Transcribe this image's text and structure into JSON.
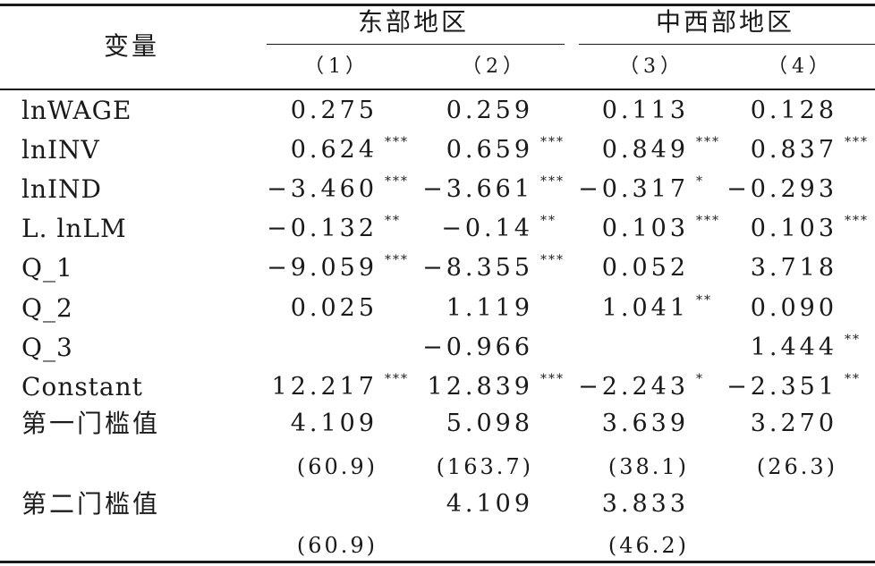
{
  "header": {
    "variable": "变量",
    "groups": [
      "东部地区",
      "中西部地区"
    ],
    "columns": [
      "（1）",
      "（2）",
      "（3）",
      "（4）"
    ]
  },
  "rows": [
    {
      "label": "lnWAGE",
      "cells": [
        {
          "v": "0.275",
          "s": ""
        },
        {
          "v": "0.259",
          "s": ""
        },
        {
          "v": "0.113",
          "s": ""
        },
        {
          "v": "0.128",
          "s": ""
        }
      ]
    },
    {
      "label": "lnINV",
      "cells": [
        {
          "v": "0.624",
          "s": "***"
        },
        {
          "v": "0.659",
          "s": "***"
        },
        {
          "v": "0.849",
          "s": "***"
        },
        {
          "v": "0.837",
          "s": "***"
        }
      ]
    },
    {
      "label": "lnIND",
      "cells": [
        {
          "v": "−3.460",
          "s": "***"
        },
        {
          "v": "−3.661",
          "s": "***"
        },
        {
          "v": "−0.317",
          "s": "*"
        },
        {
          "v": "−0.293",
          "s": ""
        }
      ]
    },
    {
      "label": "L. lnLM",
      "cells": [
        {
          "v": "−0.132",
          "s": "**"
        },
        {
          "v": "−0.14",
          "s": "**"
        },
        {
          "v": "0.103",
          "s": "***"
        },
        {
          "v": "0.103",
          "s": "***"
        }
      ]
    },
    {
      "label": "Q_1",
      "cells": [
        {
          "v": "−9.059",
          "s": "***"
        },
        {
          "v": "−8.355",
          "s": "***"
        },
        {
          "v": "0.052",
          "s": ""
        },
        {
          "v": "3.718",
          "s": ""
        }
      ]
    },
    {
      "label": "Q_2",
      "cells": [
        {
          "v": "0.025",
          "s": ""
        },
        {
          "v": "1.119",
          "s": ""
        },
        {
          "v": "1.041",
          "s": "**"
        },
        {
          "v": "0.090",
          "s": ""
        }
      ]
    },
    {
      "label": "Q_3",
      "cells": [
        {
          "v": "",
          "s": ""
        },
        {
          "v": "−0.966",
          "s": ""
        },
        {
          "v": "",
          "s": ""
        },
        {
          "v": "1.444",
          "s": "**"
        }
      ]
    },
    {
      "label": "Constant",
      "cells": [
        {
          "v": "12.217",
          "s": "***"
        },
        {
          "v": "12.839",
          "s": "***"
        },
        {
          "v": "−2.243",
          "s": "*"
        },
        {
          "v": "−2.351",
          "s": "**"
        }
      ]
    },
    {
      "label": "第一门槛值",
      "cells": [
        {
          "v": "4.109",
          "s": ""
        },
        {
          "v": "5.098",
          "s": ""
        },
        {
          "v": "3.639",
          "s": ""
        },
        {
          "v": "3.270",
          "s": ""
        }
      ]
    },
    {
      "label": "",
      "cells": [
        {
          "v": "(60.9)",
          "s": ""
        },
        {
          "v": "(163.7)",
          "s": ""
        },
        {
          "v": "(38.1)",
          "s": ""
        },
        {
          "v": "(26.3)",
          "s": ""
        }
      ]
    },
    {
      "label": "第二门槛值",
      "cells": [
        {
          "v": "",
          "s": ""
        },
        {
          "v": "4.109",
          "s": ""
        },
        {
          "v": "3.833",
          "s": ""
        },
        {
          "v": "",
          "s": ""
        }
      ]
    },
    {
      "label": "",
      "cells": [
        {
          "v": "(60.9)",
          "s": ""
        },
        {
          "v": "",
          "s": ""
        },
        {
          "v": "(46.2)",
          "s": ""
        },
        {
          "v": "",
          "s": ""
        }
      ]
    }
  ]
}
